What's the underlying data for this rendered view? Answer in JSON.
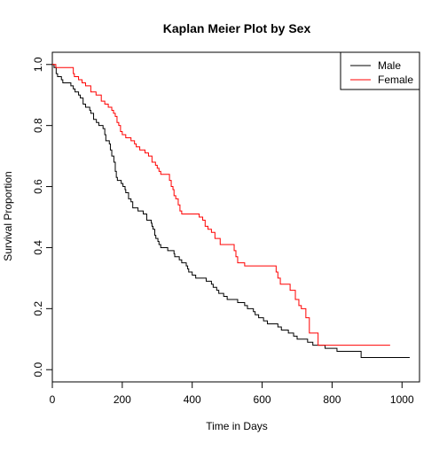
{
  "chart_data": {
    "type": "line",
    "title": "Kaplan Meier Plot by Sex",
    "xlabel": "Time in Days",
    "ylabel": "Survival Proportion",
    "xlim": [
      0,
      1050
    ],
    "ylim": [
      -0.04,
      1.04
    ],
    "xticks": [
      0,
      200,
      400,
      600,
      800,
      1000
    ],
    "yticks": [
      0.0,
      0.2,
      0.4,
      0.6,
      0.8,
      1.0
    ],
    "xtick_labels": [
      "0",
      "200",
      "400",
      "600",
      "800",
      "1000"
    ],
    "ytick_labels": [
      "0.0",
      "0.2",
      "0.4",
      "0.6",
      "0.8",
      "1.0"
    ],
    "grid": false,
    "legend_position": "top-right",
    "series": [
      {
        "name": "Male",
        "color": "#000000",
        "points": [
          [
            0,
            1.0
          ],
          [
            5,
            0.99
          ],
          [
            11,
            0.97
          ],
          [
            15,
            0.96
          ],
          [
            26,
            0.95
          ],
          [
            30,
            0.94
          ],
          [
            53,
            0.93
          ],
          [
            60,
            0.92
          ],
          [
            65,
            0.91
          ],
          [
            75,
            0.9
          ],
          [
            80,
            0.89
          ],
          [
            88,
            0.87
          ],
          [
            95,
            0.86
          ],
          [
            107,
            0.85
          ],
          [
            110,
            0.84
          ],
          [
            118,
            0.82
          ],
          [
            126,
            0.81
          ],
          [
            133,
            0.8
          ],
          [
            145,
            0.79
          ],
          [
            150,
            0.77
          ],
          [
            153,
            0.75
          ],
          [
            163,
            0.74
          ],
          [
            166,
            0.72
          ],
          [
            170,
            0.7
          ],
          [
            176,
            0.68
          ],
          [
            180,
            0.65
          ],
          [
            183,
            0.63
          ],
          [
            186,
            0.62
          ],
          [
            197,
            0.61
          ],
          [
            202,
            0.6
          ],
          [
            208,
            0.59
          ],
          [
            210,
            0.58
          ],
          [
            218,
            0.56
          ],
          [
            225,
            0.55
          ],
          [
            230,
            0.53
          ],
          [
            245,
            0.52
          ],
          [
            260,
            0.51
          ],
          [
            270,
            0.49
          ],
          [
            283,
            0.48
          ],
          [
            285,
            0.47
          ],
          [
            288,
            0.46
          ],
          [
            293,
            0.44
          ],
          [
            296,
            0.43
          ],
          [
            302,
            0.42
          ],
          [
            305,
            0.41
          ],
          [
            310,
            0.4
          ],
          [
            330,
            0.39
          ],
          [
            348,
            0.38
          ],
          [
            350,
            0.37
          ],
          [
            363,
            0.36
          ],
          [
            370,
            0.35
          ],
          [
            383,
            0.34
          ],
          [
            387,
            0.33
          ],
          [
            390,
            0.32
          ],
          [
            400,
            0.31
          ],
          [
            410,
            0.3
          ],
          [
            440,
            0.29
          ],
          [
            455,
            0.28
          ],
          [
            460,
            0.27
          ],
          [
            470,
            0.26
          ],
          [
            476,
            0.25
          ],
          [
            490,
            0.24
          ],
          [
            500,
            0.23
          ],
          [
            530,
            0.22
          ],
          [
            550,
            0.21
          ],
          [
            558,
            0.2
          ],
          [
            575,
            0.19
          ],
          [
            580,
            0.18
          ],
          [
            590,
            0.17
          ],
          [
            604,
            0.16
          ],
          [
            615,
            0.15
          ],
          [
            645,
            0.14
          ],
          [
            655,
            0.13
          ],
          [
            675,
            0.12
          ],
          [
            690,
            0.11
          ],
          [
            700,
            0.1
          ],
          [
            730,
            0.09
          ],
          [
            745,
            0.08
          ],
          [
            780,
            0.07
          ],
          [
            814,
            0.06
          ],
          [
            883,
            0.04
          ],
          [
            1022,
            0.04
          ]
        ]
      },
      {
        "name": "Female",
        "color": "#ff0000",
        "points": [
          [
            0,
            1.0
          ],
          [
            10,
            0.99
          ],
          [
            60,
            0.97
          ],
          [
            63,
            0.96
          ],
          [
            75,
            0.95
          ],
          [
            85,
            0.94
          ],
          [
            95,
            0.93
          ],
          [
            110,
            0.91
          ],
          [
            125,
            0.9
          ],
          [
            140,
            0.88
          ],
          [
            150,
            0.87
          ],
          [
            160,
            0.86
          ],
          [
            170,
            0.85
          ],
          [
            175,
            0.84
          ],
          [
            180,
            0.83
          ],
          [
            185,
            0.81
          ],
          [
            190,
            0.8
          ],
          [
            195,
            0.78
          ],
          [
            200,
            0.77
          ],
          [
            210,
            0.76
          ],
          [
            225,
            0.75
          ],
          [
            235,
            0.74
          ],
          [
            240,
            0.73
          ],
          [
            250,
            0.72
          ],
          [
            265,
            0.71
          ],
          [
            275,
            0.7
          ],
          [
            285,
            0.68
          ],
          [
            295,
            0.67
          ],
          [
            300,
            0.66
          ],
          [
            305,
            0.65
          ],
          [
            310,
            0.64
          ],
          [
            335,
            0.62
          ],
          [
            340,
            0.6
          ],
          [
            345,
            0.59
          ],
          [
            348,
            0.57
          ],
          [
            353,
            0.56
          ],
          [
            360,
            0.54
          ],
          [
            365,
            0.52
          ],
          [
            370,
            0.51
          ],
          [
            420,
            0.5
          ],
          [
            430,
            0.49
          ],
          [
            437,
            0.47
          ],
          [
            445,
            0.46
          ],
          [
            455,
            0.45
          ],
          [
            465,
            0.43
          ],
          [
            480,
            0.41
          ],
          [
            520,
            0.39
          ],
          [
            525,
            0.37
          ],
          [
            530,
            0.35
          ],
          [
            550,
            0.34
          ],
          [
            640,
            0.32
          ],
          [
            645,
            0.3
          ],
          [
            652,
            0.28
          ],
          [
            680,
            0.26
          ],
          [
            695,
            0.23
          ],
          [
            705,
            0.21
          ],
          [
            712,
            0.2
          ],
          [
            725,
            0.17
          ],
          [
            735,
            0.12
          ],
          [
            760,
            0.08
          ],
          [
            966,
            0.08
          ]
        ]
      }
    ]
  }
}
